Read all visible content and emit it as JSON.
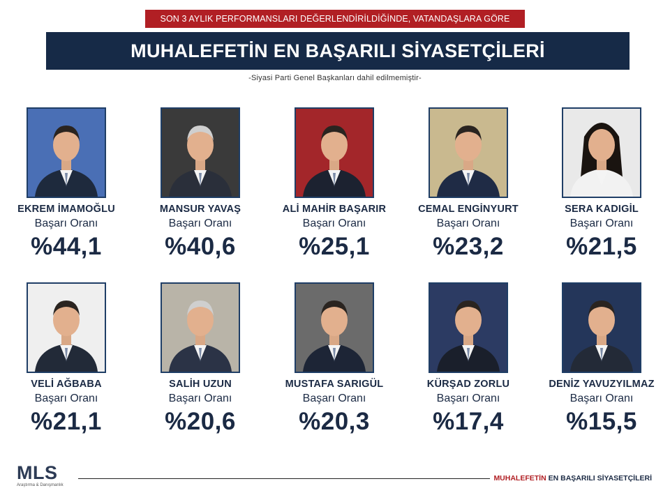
{
  "banner": "SON 3 AYLIK PERFORMANSLARI DEĞERLENDİRİLDİĞİNDE, VATANDAŞLARA GÖRE",
  "title": "MUHALEFETİN EN BAŞARILI SİYASETÇİLERİ",
  "subtitle": "-Siyasi Parti Genel Başkanları dahil edilmemiştir-",
  "rate_label": "Başarı Oranı",
  "politicians": [
    {
      "name": "EKREM İMAMOĞLU",
      "label": "Başarı Oranı",
      "rate": "%44,1",
      "value": 44.1,
      "bg": "#4a6fb5",
      "suit": "#1e2a3d"
    },
    {
      "name": "MANSUR YAVAŞ",
      "label": "Başarı Oranı",
      "rate": "%40,6",
      "value": 40.6,
      "bg": "#3a3a3a",
      "suit": "#2a2f3a"
    },
    {
      "name": "ALİ MAHİR BAŞARIR",
      "label": "Başarı Oranı",
      "rate": "%25,1",
      "value": 25.1,
      "bg": "#a3262a",
      "suit": "#1c2230"
    },
    {
      "name": "CEMAL ENGİNYURT",
      "label": "Başarı Oranı",
      "rate": "%23,2",
      "value": 23.2,
      "bg": "#c9b98f",
      "suit": "#1f2b45"
    },
    {
      "name": "SERA KADIGİL",
      "label": "Başarı Oranı",
      "rate": "%21,5",
      "value": 21.5,
      "bg": "#e9e9e9",
      "suit": "#f2f2f2"
    },
    {
      "name": "VELİ AĞBABA",
      "label": "Başarı Oranı",
      "rate": "%21,1",
      "value": 21.1,
      "bg": "#efefef",
      "suit": "#222a38"
    },
    {
      "name": "SALİH UZUN",
      "label": "Başarı Oranı",
      "rate": "%20,6",
      "value": 20.6,
      "bg": "#b9b4a8",
      "suit": "#2b3346"
    },
    {
      "name": "MUSTAFA SARIGÜL",
      "label": "Başarı Oranı",
      "rate": "%20,3",
      "value": 20.3,
      "bg": "#6b6b6b",
      "suit": "#1d2536"
    },
    {
      "name": "KÜRŞAD ZORLU",
      "label": "Başarı Oranı",
      "rate": "%17,4",
      "value": 17.4,
      "bg": "#2c3b63",
      "suit": "#1a1f2b"
    },
    {
      "name": "DENİZ YAVUZYILMAZ",
      "label": "Başarı Oranı",
      "rate": "%15,5",
      "value": 15.5,
      "bg": "#24365a",
      "suit": "#232a37"
    }
  ],
  "footer": {
    "logo": "MLS",
    "logo_sub": "Araştırma & Danışmanlık",
    "text_red": "MUHALEFETİN",
    "text_rest": " EN BAŞARILI SİYASETÇİLERİ"
  }
}
